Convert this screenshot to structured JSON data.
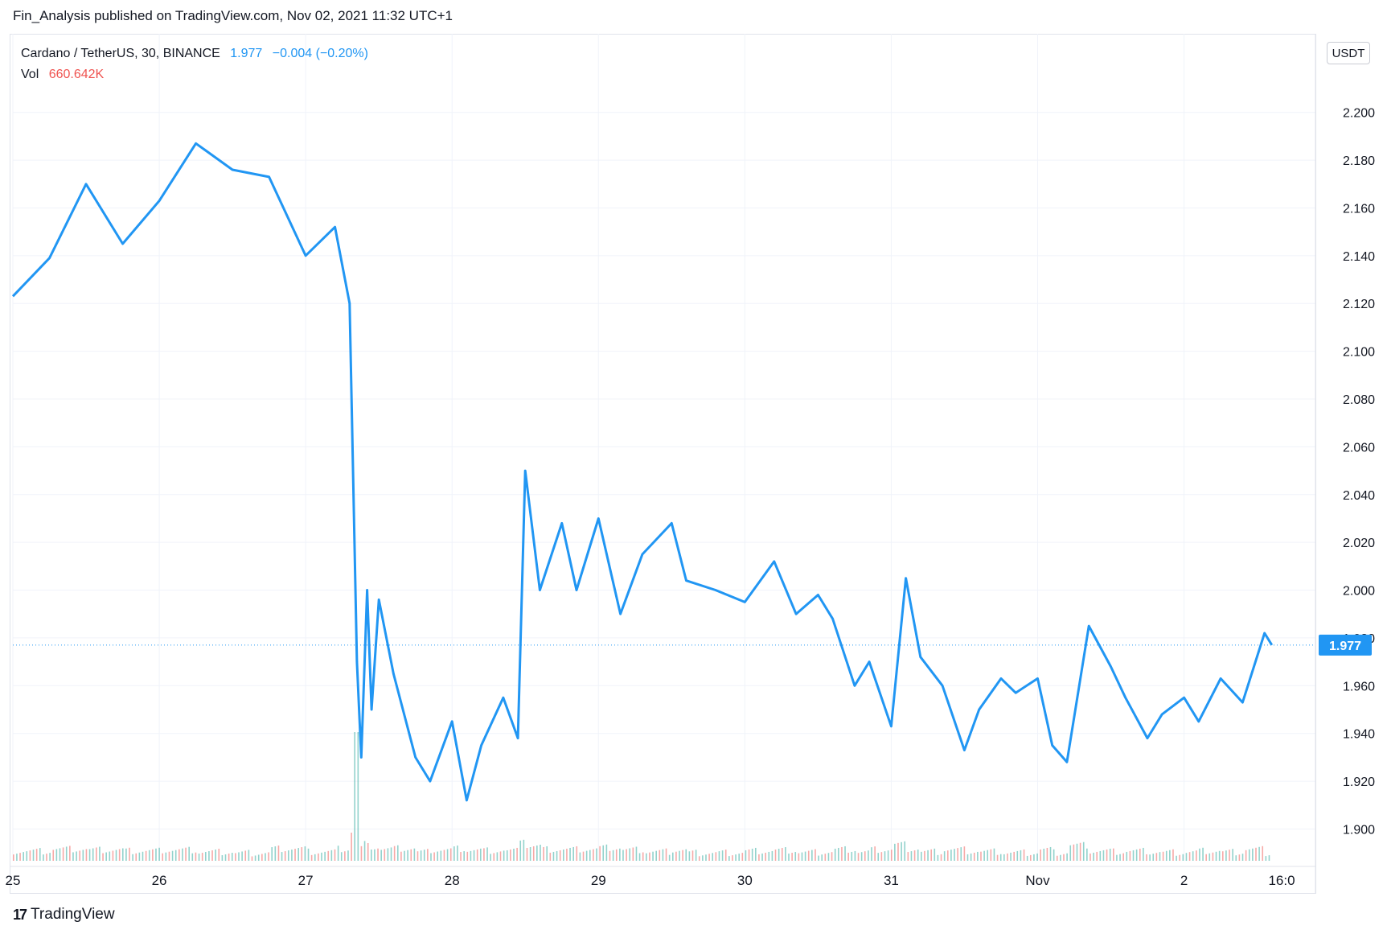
{
  "header": {
    "publisher_line": "Fin_Analysis published on TradingView.com, Nov 02, 2021 11:32 UTC+1"
  },
  "legend": {
    "symbol": "Cardano / TetherUS, 30, BINANCE",
    "price": "1.977",
    "change": "−0.004 (−0.20%)",
    "vol_label": "Vol",
    "vol_value": "660.642K"
  },
  "currency_button": "USDT",
  "last_price_label": "1.977",
  "footer": {
    "logo_text": "TradingView",
    "logo_mark": "17"
  },
  "colors": {
    "line": "#2196f3",
    "vol_up": "#26a69a",
    "vol_down": "#ef5350",
    "grid": "#f0f3fa"
  },
  "chart_data": {
    "type": "line",
    "title": "",
    "xlabel": "",
    "ylabel": "",
    "ylim": [
      1.885,
      2.21
    ],
    "y_ticks": [
      "2.200",
      "2.180",
      "2.160",
      "2.140",
      "2.120",
      "2.100",
      "2.080",
      "2.060",
      "2.040",
      "2.020",
      "2.000",
      "1.980",
      "1.960",
      "1.940",
      "1.920",
      "1.900"
    ],
    "y_tick_values": [
      2.2,
      2.18,
      2.16,
      2.14,
      2.12,
      2.1,
      2.08,
      2.06,
      2.04,
      2.02,
      2.0,
      1.98,
      1.96,
      1.94,
      1.92,
      1.9
    ],
    "x_ticks": [
      {
        "label": "25",
        "day": 0
      },
      {
        "label": "26",
        "day": 1
      },
      {
        "label": "27",
        "day": 2
      },
      {
        "label": "28",
        "day": 3
      },
      {
        "label": "29",
        "day": 4
      },
      {
        "label": "30",
        "day": 5
      },
      {
        "label": "31",
        "day": 6
      },
      {
        "label": "Nov",
        "day": 7
      },
      {
        "label": "2",
        "day": 8
      },
      {
        "label": "16:0",
        "day": 8.667
      }
    ],
    "x_range_days": [
      0,
      8.7
    ],
    "series": [
      {
        "x_days": [
          0,
          0.25,
          0.5,
          0.75,
          1,
          1.25,
          1.5,
          1.75,
          2,
          2.2,
          2.3,
          2.35,
          2.38,
          2.42,
          2.45,
          2.5,
          2.6,
          2.75,
          2.85,
          3,
          3.1,
          3.2,
          3.35,
          3.45,
          3.5,
          3.6,
          3.75,
          3.85,
          4,
          4.15,
          4.3,
          4.5,
          4.6,
          4.8,
          5,
          5.2,
          5.35,
          5.5,
          5.6,
          5.75,
          5.85,
          6,
          6.1,
          6.2,
          6.35,
          6.5,
          6.6,
          6.75,
          6.85,
          7,
          7.1,
          7.2,
          7.35,
          7.5,
          7.6,
          7.75,
          7.85,
          8,
          8.1,
          8.25,
          8.4,
          8.55,
          8.6
        ],
        "values": [
          2.123,
          2.139,
          2.17,
          2.145,
          2.163,
          2.187,
          2.176,
          2.173,
          2.14,
          2.152,
          2.12,
          1.97,
          1.93,
          2.0,
          1.95,
          1.996,
          1.965,
          1.93,
          1.92,
          1.945,
          1.912,
          1.935,
          1.955,
          1.938,
          2.05,
          2.0,
          2.028,
          2.0,
          2.03,
          1.99,
          2.015,
          2.028,
          2.004,
          2.0,
          1.995,
          2.012,
          1.99,
          1.998,
          1.988,
          1.96,
          1.97,
          1.943,
          2.005,
          1.972,
          1.96,
          1.933,
          1.95,
          1.963,
          1.957,
          1.963,
          1.935,
          1.928,
          1.985,
          1.968,
          1.955,
          1.938,
          1.948,
          1.955,
          1.945,
          1.963,
          1.953,
          1.982,
          1.977
        ]
      }
    ]
  }
}
